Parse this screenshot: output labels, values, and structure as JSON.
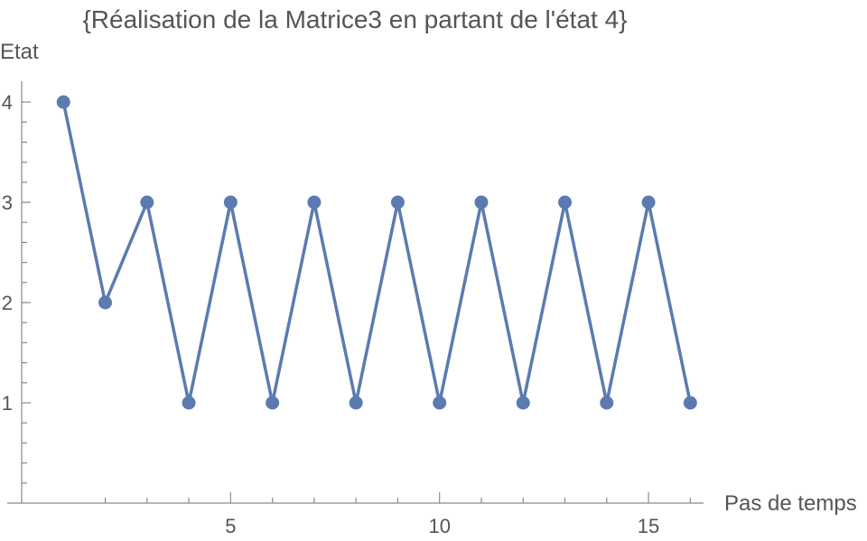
{
  "chart_data": {
    "type": "line",
    "title": "{Réalisation de la Matrice3 en partant de l'état 4}",
    "xlabel": "Pas de temps",
    "ylabel": "Etat",
    "x": [
      1,
      2,
      3,
      4,
      5,
      6,
      7,
      8,
      9,
      10,
      11,
      12,
      13,
      14,
      15,
      16
    ],
    "series": [
      {
        "values": [
          4,
          2,
          3,
          1,
          3,
          1,
          3,
          1,
          3,
          1,
          3,
          1,
          3,
          1,
          3,
          1
        ]
      }
    ],
    "xlim": [
      0,
      16.5
    ],
    "ylim": [
      0,
      4.2
    ],
    "x_major_ticks": [
      5,
      10,
      15
    ],
    "x_minor_ticks": [
      2,
      3,
      4,
      6,
      7,
      8,
      9,
      11,
      12,
      13,
      14,
      16
    ],
    "y_major_ticks": [
      1,
      2,
      3,
      4
    ],
    "y_minor_ticks": [
      0.2,
      0.4,
      0.6,
      0.8,
      1.2,
      1.4,
      1.6,
      1.8,
      2.2,
      2.4,
      2.6,
      2.8,
      3.2,
      3.4,
      3.6,
      3.8
    ],
    "grid": false,
    "colors": {
      "series": "#5b7bb0",
      "axis": "#8a8a8a",
      "text": "#555555"
    }
  }
}
